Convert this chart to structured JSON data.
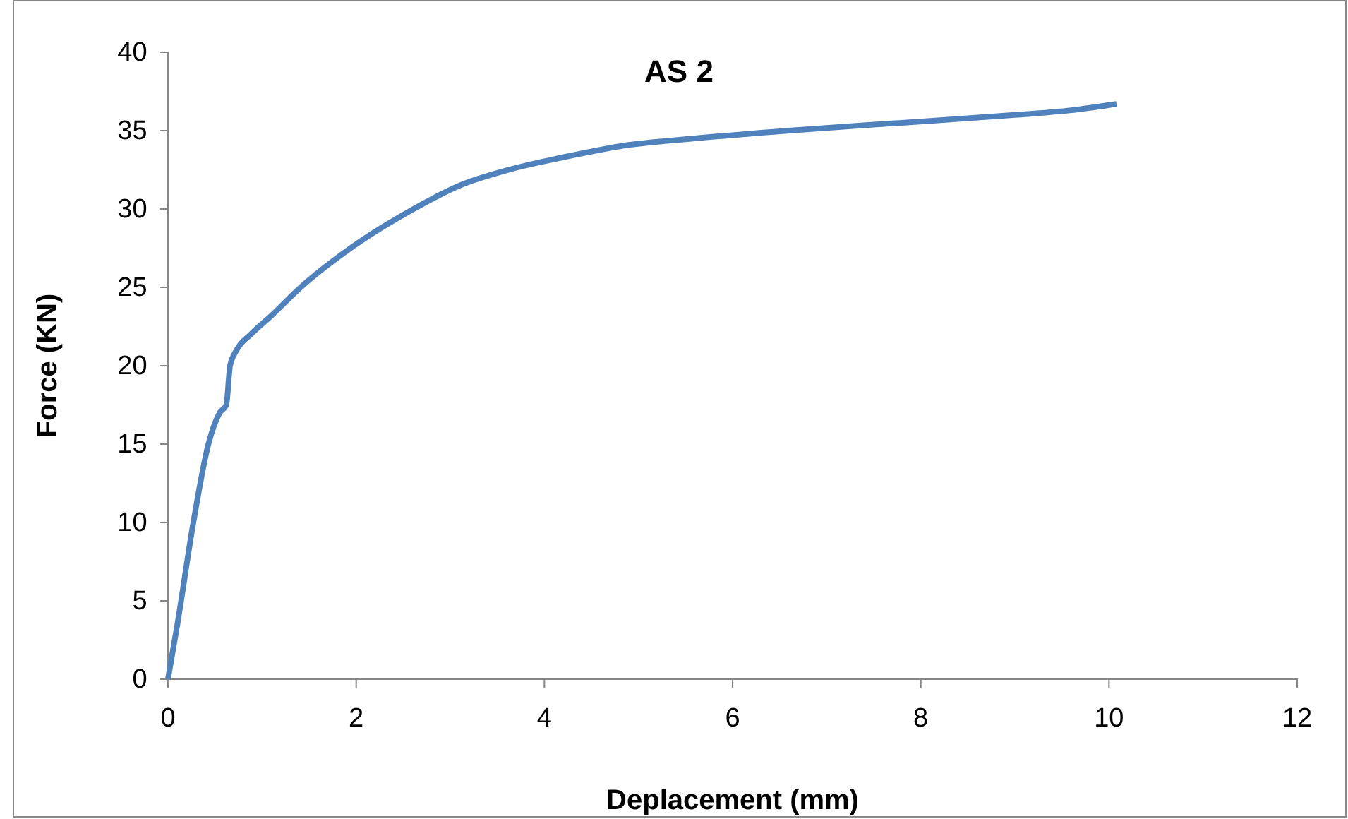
{
  "chart_data": {
    "type": "line",
    "title": "AS 2",
    "xlabel": "Deplacement (mm)",
    "ylabel": "Force (KN)",
    "xlim": [
      0,
      12
    ],
    "xticks": [
      0,
      2,
      4,
      6,
      8,
      10,
      12
    ],
    "ylim": [
      0,
      40
    ],
    "yticks": [
      0,
      5,
      10,
      15,
      20,
      25,
      30,
      35,
      40
    ],
    "grid": false,
    "marker": "none",
    "line_style": "solid",
    "series": [
      {
        "color": "#4f81bd",
        "x": [
          0,
          0.1,
          0.27,
          0.43,
          0.55,
          0.62,
          0.66,
          0.73,
          0.88,
          1.1,
          1.41,
          1.94,
          2.61,
          3.1,
          3.62,
          4.2,
          4.8,
          5.6,
          6.6,
          7.8,
          9.0,
          9.6,
          10.08
        ],
        "values": [
          0,
          3.5,
          10,
          15,
          17,
          17.5,
          20,
          21,
          22,
          23.2,
          25,
          27.5,
          30,
          31.5,
          32.5,
          33.3,
          34,
          34.5,
          35,
          35.5,
          36,
          36.3,
          36.7
        ]
      }
    ]
  }
}
